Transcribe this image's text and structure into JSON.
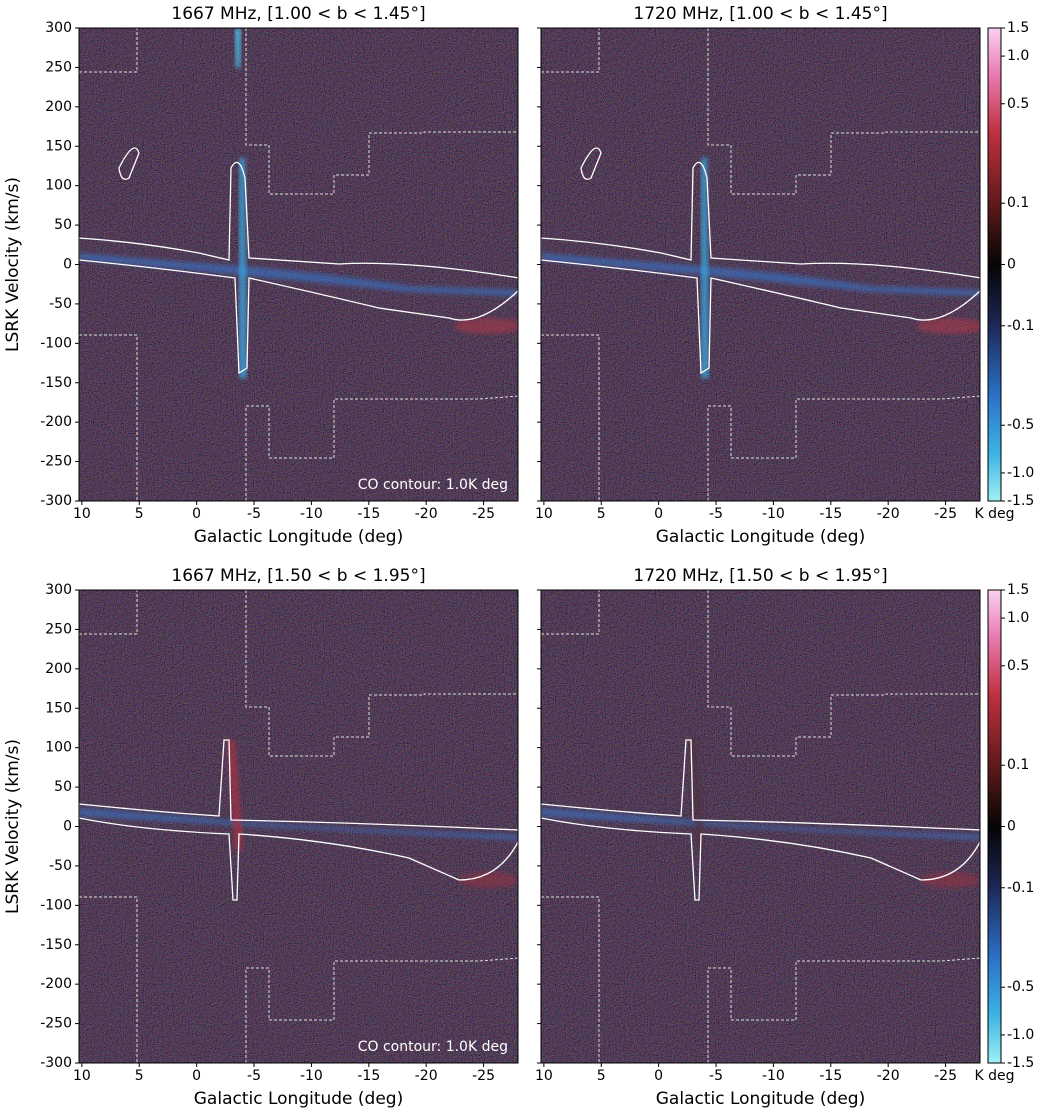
{
  "chart_data": [
    {
      "type": "heatmap",
      "title": "1667 MHz, [1.00 < b < 1.45°]",
      "xlabel": "Galactic Longitude (deg)",
      "ylabel": "LSRK Velocity (km/s)",
      "annotation": "CO contour: 1.0K deg",
      "xlim": [
        10.25,
        -28
      ],
      "xticks": [
        10,
        5,
        0,
        -5,
        -10,
        -15,
        -20,
        -25
      ],
      "ylim": [
        -300,
        300
      ],
      "yticks": [
        300,
        250,
        200,
        150,
        100,
        50,
        0,
        -50,
        -100,
        -150,
        -200,
        -250,
        -300
      ],
      "show_ytick_labels": true
    },
    {
      "type": "heatmap",
      "title": "1720 MHz, [1.00 < b < 1.45°]",
      "xlabel": "Galactic Longitude (deg)",
      "xlim": [
        10.25,
        -28
      ],
      "xticks": [
        10,
        5,
        0,
        -5,
        -10,
        -15,
        -20,
        -25
      ],
      "ylim": [
        -300,
        300
      ],
      "yticks": [
        300,
        250,
        200,
        150,
        100,
        50,
        0,
        -50,
        -100,
        -150,
        -200,
        -250,
        -300
      ],
      "show_ytick_labels": false,
      "colorbar": {
        "label": "K deg",
        "lim": [
          -1.5,
          1.5
        ],
        "scale": "asinh",
        "linear_width": 0.1,
        "ticks": [
          1.5,
          {
            "value": 1,
            "label": "1.0"
          },
          0.5,
          0.1,
          0,
          -0.1,
          -0.5,
          {
            "value": -1,
            "label": "-1.0"
          },
          -1.5
        ]
      }
    },
    {
      "type": "heatmap",
      "title": "1667 MHz, [1.50 < b < 1.95°]",
      "xlabel": "Galactic Longitude (deg)",
      "ylabel": "LSRK Velocity (km/s)",
      "annotation": "CO contour: 1.0K deg",
      "xlim": [
        10.25,
        -28
      ],
      "xticks": [
        10,
        5,
        0,
        -5,
        -10,
        -15,
        -20,
        -25
      ],
      "ylim": [
        -300,
        300
      ],
      "yticks": [
        300,
        250,
        200,
        150,
        100,
        50,
        0,
        -50,
        -100,
        -150,
        -200,
        -250,
        -300
      ],
      "show_ytick_labels": true
    },
    {
      "type": "heatmap",
      "title": "1720 MHz, [1.50 < b < 1.95°]",
      "xlabel": "Galactic Longitude (deg)",
      "xlim": [
        10.25,
        -28
      ],
      "xticks": [
        10,
        5,
        0,
        -5,
        -10,
        -15,
        -20,
        -25
      ],
      "ylim": [
        -300,
        300
      ],
      "yticks": [
        300,
        250,
        200,
        150,
        100,
        50,
        0,
        -50,
        -100,
        -150,
        -200,
        -250,
        -300
      ],
      "show_ytick_labels": false,
      "colorbar": {
        "label": "K deg",
        "lim": [
          -1.5,
          1.5
        ],
        "scale": "asinh",
        "linear_width": 0.1,
        "ticks": [
          1.5,
          {
            "value": 1,
            "label": "1.0"
          },
          0.5,
          0.1,
          0,
          -0.1,
          -0.5,
          {
            "value": -1,
            "label": "-1.0"
          },
          -1.5
        ]
      }
    }
  ]
}
